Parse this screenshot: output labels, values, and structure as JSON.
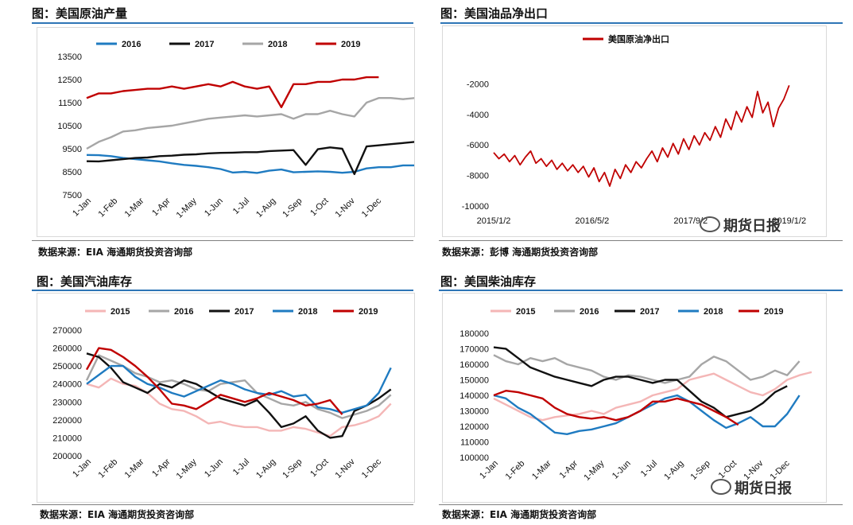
{
  "panels": [
    {
      "title": "图：美国原油产量",
      "source": "数据来源：EIA   海通期货投资咨询部",
      "watermark": "",
      "chart_data": {
        "type": "line",
        "legend_position": "top",
        "ylim": [
          7500,
          13500
        ],
        "yticks": [
          "13500",
          "12500",
          "11500",
          "10500",
          "9500",
          "8500",
          "7500"
        ],
        "yticks_all": [
          13500,
          12500,
          11500,
          10500,
          9500,
          8500,
          7500
        ],
        "ytick_minor": [
          "12500",
          "11500",
          "10500",
          "9500",
          "8500"
        ],
        "xticks": [
          "1-Jan",
          "1-Feb",
          "1-Mar",
          "1-Apr",
          "1-May",
          "1-Jun",
          "1-Jul",
          "1-Aug",
          "1-Sep",
          "1-Oct",
          "1-Nov",
          "1-Dec"
        ],
        "grid": false,
        "series": [
          {
            "name": "2016",
            "color": "#1f7bc1",
            "values": [
              9230,
              9220,
              9180,
              9100,
              9050,
              9000,
              8950,
              8870,
              8800,
              8760,
              8700,
              8620,
              8470,
              8500,
              8450,
              8550,
              8600,
              8480,
              8500,
              8520,
              8500,
              8460,
              8500,
              8650,
              8700,
              8700,
              8780,
              8780
            ]
          },
          {
            "name": "2017",
            "color": "#111111",
            "values": [
              8960,
              8950,
              9000,
              9050,
              9100,
              9120,
              9180,
              9200,
              9240,
              9260,
              9300,
              9320,
              9330,
              9350,
              9350,
              9400,
              9420,
              9440,
              8800,
              9480,
              9560,
              9500,
              8400,
              9600,
              9650,
              9700,
              9750,
              9800
            ]
          },
          {
            "name": "2018",
            "color": "#a6a6a6",
            "values": [
              9500,
              9800,
              10000,
              10250,
              10300,
              10400,
              10450,
              10500,
              10600,
              10700,
              10800,
              10850,
              10900,
              10950,
              10900,
              10950,
              11000,
              10800,
              11000,
              11000,
              11150,
              11000,
              10900,
              11500,
              11700,
              11700,
              11650,
              11700
            ]
          },
          {
            "name": "2019",
            "color": "#c00000",
            "values": [
              11700,
              11900,
              11900,
              12000,
              12050,
              12100,
              12100,
              12200,
              12100,
              12200,
              12300,
              12200,
              12400,
              12200,
              12100,
              12200,
              11300,
              12300,
              12300,
              12400,
              12400,
              12500,
              12500,
              12600,
              12600
            ]
          }
        ]
      }
    },
    {
      "title": "图：美国油品净出口",
      "source": "数据来源：彭博   海通期货投资咨询部",
      "watermark": "期货日报",
      "chart_data": {
        "type": "line",
        "legend_position": "top",
        "ylim": [
          -10000,
          0
        ],
        "yticks": [
          "-2000",
          "-4000",
          "-6000",
          "-8000",
          "-10000"
        ],
        "yticks_all": [
          -2000,
          -4000,
          -6000,
          -8000,
          -10000
        ],
        "xticks": [
          "2015/1/2",
          "2016/5/2",
          "2017/9/2",
          "2019/1/2"
        ],
        "grid": false,
        "series": [
          {
            "name": "美国原油净出口",
            "color": "#c00000",
            "values": [
              -6500,
              -6900,
              -6600,
              -7100,
              -6700,
              -7300,
              -6800,
              -6400,
              -7200,
              -6900,
              -7400,
              -7000,
              -7600,
              -7200,
              -7700,
              -7300,
              -7800,
              -7400,
              -8100,
              -7500,
              -8400,
              -7800,
              -8700,
              -7600,
              -8200,
              -7300,
              -7800,
              -7100,
              -7500,
              -6900,
              -6400,
              -7100,
              -6200,
              -6800,
              -5900,
              -6600,
              -5600,
              -6300,
              -5400,
              -6000,
              -5200,
              -5700,
              -4800,
              -5500,
              -4300,
              -5000,
              -3800,
              -4500,
              -3500,
              -4200,
              -2500,
              -3900,
              -3200,
              -4800,
              -3600,
              -3000,
              -2100
            ]
          }
        ]
      }
    },
    {
      "title": "图：美国汽油库存",
      "source": "数据来源：EIA   海通期货投资咨询部",
      "watermark": "",
      "chart_data": {
        "type": "line",
        "legend_position": "top",
        "ylim": [
          200000,
          270000
        ],
        "yticks": [
          "270000",
          "260000",
          "250000",
          "240000",
          "230000",
          "220000",
          "210000",
          "200000"
        ],
        "yticks_all": [
          270000,
          260000,
          250000,
          240000,
          230000,
          220000,
          210000,
          200000
        ],
        "xticks": [
          "1-Jan",
          "1-Feb",
          "1-Mar",
          "1-Apr",
          "1-May",
          "1-Jun",
          "1-Jul",
          "1-Aug",
          "1-Sep",
          "1-Oct",
          "1-Nov",
          "1-Dec"
        ],
        "grid": false,
        "series": [
          {
            "name": "2015",
            "color": "#f4b6b6",
            "values": [
              240000,
              238000,
              243000,
              240000,
              239000,
              235000,
              229000,
              226000,
              225000,
              222000,
              218000,
              219000,
              217000,
              216000,
              216000,
              214000,
              214000,
              216000,
              215000,
              213000,
              211000,
              216000,
              217000,
              219000,
              222000,
              229000
            ]
          },
          {
            "name": "2016",
            "color": "#a6a6a6",
            "values": [
              242000,
              256000,
              253000,
              250000,
              246000,
              244000,
              241000,
              242000,
              240000,
              237000,
              236000,
              240000,
              241000,
              242000,
              235000,
              232000,
              229000,
              228000,
              230000,
              226000,
              224000,
              221000,
              223000,
              225000,
              228000,
              234000
            ]
          },
          {
            "name": "2017",
            "color": "#111111",
            "values": [
              257000,
              255000,
              249000,
              241000,
              238000,
              235000,
              240000,
              238000,
              242000,
              240000,
              236000,
              232000,
              230000,
              228000,
              231000,
              224000,
              216000,
              218000,
              222000,
              214000,
              210000,
              211000,
              225000,
              228000,
              232000,
              237000
            ]
          },
          {
            "name": "2018",
            "color": "#1f7bc1",
            "values": [
              240000,
              245000,
              250000,
              250000,
              244000,
              240000,
              238000,
              235000,
              233000,
              236000,
              239000,
              242000,
              240000,
              237000,
              235000,
              234000,
              236000,
              233000,
              234000,
              227000,
              226000,
              224000,
              226000,
              228000,
              235000,
              249000
            ]
          },
          {
            "name": "2019",
            "color": "#c00000",
            "values": [
              248000,
              260000,
              259000,
              255000,
              250000,
              244000,
              237000,
              229000,
              228000,
              226000,
              230000,
              234000,
              232000,
              230000,
              232000,
              235000,
              233000,
              231000,
              228000,
              229000,
              231000,
              223000
            ]
          }
        ]
      }
    },
    {
      "title": "图：美国柴油库存",
      "source": "数据来源：EIA   海通期货投资咨询部",
      "watermark": "期货日报",
      "chart_data": {
        "type": "line",
        "legend_position": "top",
        "ylim": [
          100000,
          180000
        ],
        "yticks": [
          "180000",
          "170000",
          "160000",
          "150000",
          "140000",
          "130000",
          "120000",
          "110000",
          "100000"
        ],
        "yticks_all": [
          180000,
          170000,
          160000,
          150000,
          140000,
          130000,
          120000,
          110000,
          100000
        ],
        "xticks": [
          "1-Jan",
          "1-Feb",
          "1-Mar",
          "1-Apr",
          "1-May",
          "1-Jun",
          "1-Jul",
          "1-Aug",
          "1-Sep",
          "1-Oct",
          "1-Nov",
          "1-Dec"
        ],
        "grid": false,
        "series": [
          {
            "name": "2015",
            "color": "#f4b6b6",
            "values": [
              138000,
              134000,
              130000,
              126000,
              124000,
              126000,
              127000,
              128000,
              130000,
              128000,
              132000,
              134000,
              136000,
              140000,
              142000,
              144000,
              150000,
              152000,
              154000,
              150000,
              146000,
              142000,
              140000,
              144000,
              150000,
              153000,
              155000
            ]
          },
          {
            "name": "2016",
            "color": "#a6a6a6",
            "values": [
              166000,
              162000,
              160000,
              164000,
              162000,
              164000,
              160000,
              158000,
              156000,
              152000,
              150000,
              153000,
              152000,
              150000,
              148000,
              150000,
              152000,
              160000,
              165000,
              162000,
              156000,
              150000,
              152000,
              156000,
              153000,
              162000
            ]
          },
          {
            "name": "2017",
            "color": "#111111",
            "values": [
              171000,
              170000,
              164000,
              158000,
              155000,
              152000,
              150000,
              148000,
              146000,
              150000,
              152000,
              152000,
              150000,
              148000,
              150000,
              150000,
              143000,
              136000,
              132000,
              126000,
              128000,
              130000,
              135000,
              142000,
              146000
            ]
          },
          {
            "name": "2018",
            "color": "#1f7bc1",
            "values": [
              140000,
              138000,
              132000,
              128000,
              122000,
              116000,
              115000,
              117000,
              118000,
              120000,
              122000,
              126000,
              130000,
              134000,
              138000,
              140000,
              136000,
              130000,
              124000,
              119000,
              122000,
              126000,
              120000,
              120000,
              128000,
              140000
            ]
          },
          {
            "name": "2019",
            "color": "#c00000",
            "values": [
              140000,
              143000,
              142000,
              140000,
              138000,
              132000,
              128000,
              126000,
              125000,
              126000,
              124000,
              126000,
              130000,
              136000,
              136000,
              138000,
              136000,
              134000,
              130000,
              126000,
              121000
            ]
          }
        ]
      }
    }
  ]
}
